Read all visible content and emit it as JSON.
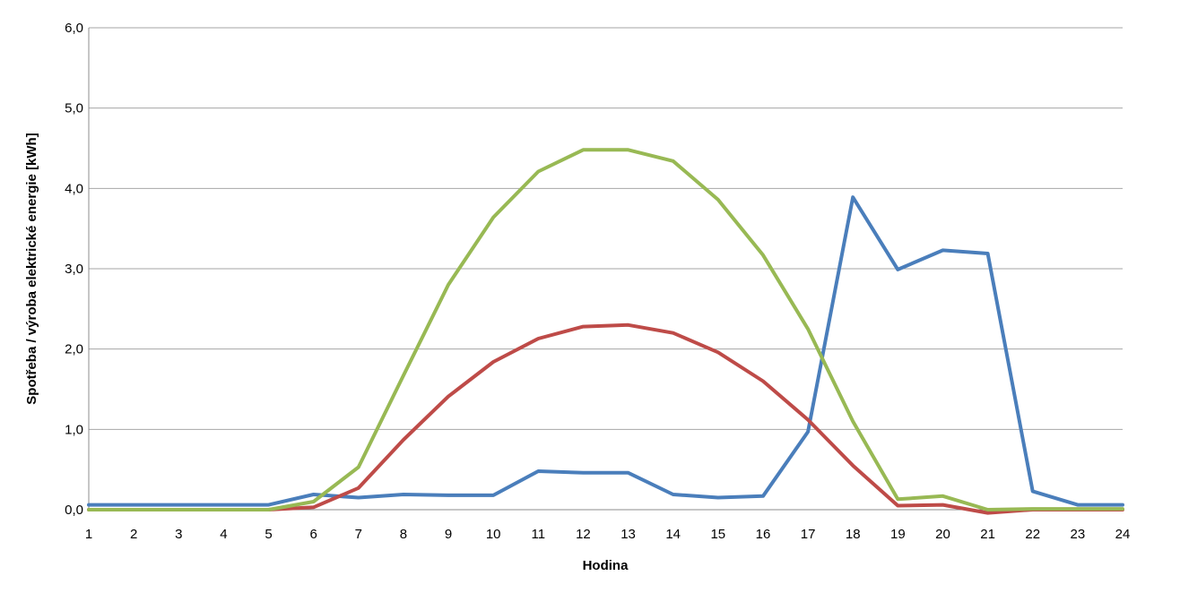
{
  "chart_data": {
    "type": "line",
    "xlabel": "Hodina",
    "ylabel": "Spotřeba / výroba elektrické energie [kWh]",
    "ylim": [
      0,
      6
    ],
    "y_ticks": [
      0,
      1,
      2,
      3,
      4,
      5,
      6
    ],
    "y_tick_labels": [
      "0,0",
      "1,0",
      "2,0",
      "3,0",
      "4,0",
      "5,0",
      "6,0"
    ],
    "x": [
      1,
      2,
      3,
      4,
      5,
      6,
      7,
      8,
      9,
      10,
      11,
      12,
      13,
      14,
      15,
      16,
      17,
      18,
      19,
      20,
      21,
      22,
      23,
      24
    ],
    "x_tick_labels": [
      "1",
      "2",
      "3",
      "4",
      "5",
      "6",
      "7",
      "8",
      "9",
      "10",
      "11",
      "12",
      "13",
      "14",
      "15",
      "16",
      "17",
      "18",
      "19",
      "20",
      "21",
      "22",
      "23",
      "24"
    ],
    "grid": "horizontal",
    "legend": "none",
    "series": [
      {
        "color": "#4a7ebb",
        "values": [
          0.06,
          0.06,
          0.06,
          0.06,
          0.06,
          0.19,
          0.15,
          0.19,
          0.18,
          0.18,
          0.48,
          0.46,
          0.46,
          0.19,
          0.15,
          0.17,
          0.97,
          3.89,
          2.99,
          3.23,
          3.19,
          0.23,
          0.06,
          0.06
        ]
      },
      {
        "color": "#be4b48",
        "values": [
          0.0,
          0.0,
          0.0,
          0.0,
          0.0,
          0.03,
          0.27,
          0.87,
          1.41,
          1.84,
          2.13,
          2.28,
          2.3,
          2.2,
          1.96,
          1.6,
          1.12,
          0.55,
          0.05,
          0.06,
          -0.04,
          0.0,
          0.0,
          0.0
        ]
      },
      {
        "color": "#98b954",
        "values": [
          0.0,
          0.0,
          0.0,
          0.0,
          0.0,
          0.1,
          0.53,
          1.67,
          2.8,
          3.64,
          4.21,
          4.48,
          4.48,
          4.34,
          3.86,
          3.17,
          2.25,
          1.1,
          0.13,
          0.17,
          0.0,
          0.01,
          0.01,
          0.01
        ]
      }
    ]
  }
}
